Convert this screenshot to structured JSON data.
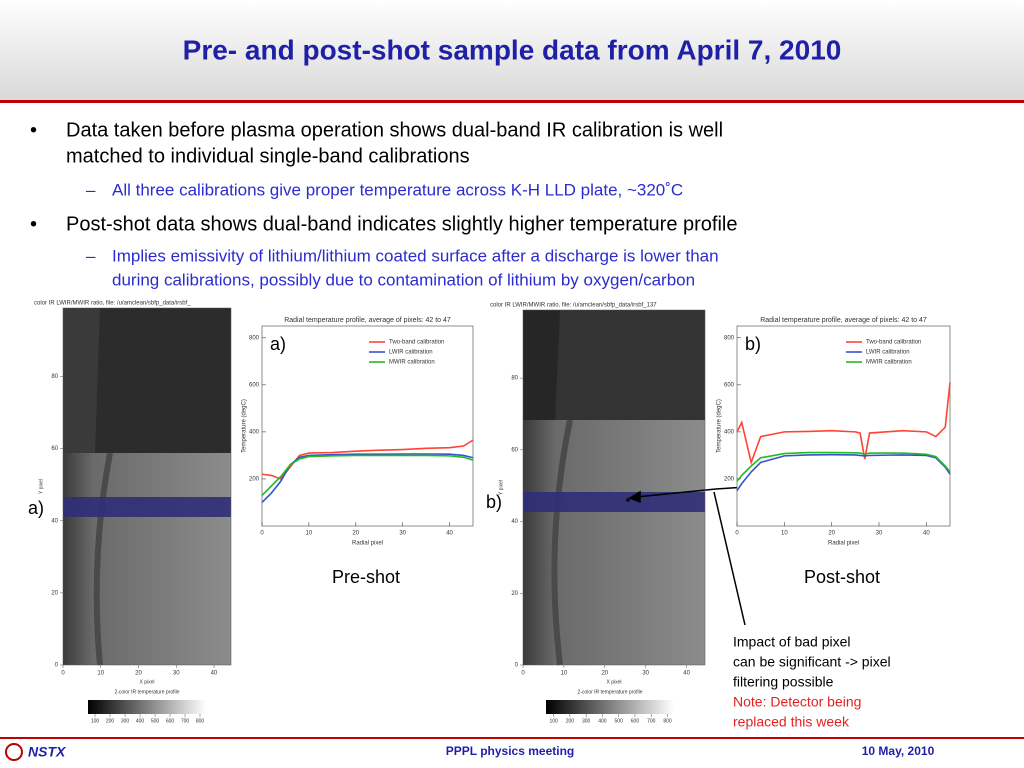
{
  "header": {
    "title": "Pre- and post-shot sample data from April 7, 2010"
  },
  "bullets": [
    {
      "lines": [
        "Data taken before plasma operation shows dual-band IR calibration is well",
        "matched to individual single-band calibrations"
      ],
      "sub": [
        "All three calibrations give proper temperature across K-H LLD plate, ~320˚C"
      ]
    },
    {
      "lines": [
        "Post-shot data shows dual-band indicates slightly higher temperature profile"
      ],
      "sub": [
        "Implies emissivity of lithium/lithium coated surface after a discharge is lower than",
        "during calibrations, possibly due to contamination of lithium by oxygen/carbon"
      ]
    }
  ],
  "images": [
    {
      "label": "a)",
      "title": "color IR LWIR/MWIR ratio, file: /u/amclean/sbfp_data/irsbf_",
      "ylabel": "Y pixel",
      "xlabel": "X pixel",
      "xlim": [
        0,
        44.5
      ],
      "ylim": [
        0,
        99
      ],
      "xticks": [
        0,
        10,
        20,
        30,
        40
      ],
      "yticks": [
        0,
        20,
        40,
        60,
        80
      ],
      "colorbar_title": "2-color IR temperature profile",
      "clim": [
        53,
        840
      ],
      "colorbar_ticks": [
        100,
        200,
        300,
        400,
        500,
        600,
        700,
        800
      ]
    },
    {
      "label": "b)",
      "title": "color IR LWIR/MWIR ratio, file: /u/amclean/sbfp_data/irsbf_137",
      "ylabel": "Y pixel",
      "xlabel": "X pixel",
      "xlim": [
        0,
        44.5
      ],
      "ylim": [
        0,
        99
      ],
      "xticks": [
        0,
        10,
        20,
        30,
        40
      ],
      "yticks": [
        0,
        20,
        40,
        60,
        80
      ],
      "colorbar_title": "2-color IR temperature profile",
      "clim": [
        53,
        840
      ],
      "colorbar_ticks": [
        100,
        200,
        300,
        400,
        500,
        600,
        700,
        800
      ]
    }
  ],
  "chart_data": [
    {
      "type": "line",
      "label": "a)",
      "title": "Radial temperature profile, average of pixels: 42 to 47",
      "xlabel": "Radial pixel",
      "ylabel": "Temperature (degC)",
      "x": [
        0,
        2,
        4,
        6,
        8,
        10,
        15,
        20,
        25,
        30,
        35,
        40,
        43,
        45
      ],
      "xlim": [
        0,
        45
      ],
      "ylim": [
        0,
        850
      ],
      "xticks": [
        0,
        10,
        20,
        30,
        40
      ],
      "yticks": [
        200,
        400,
        600,
        800
      ],
      "series": [
        {
          "name": "Two-band calibration",
          "color": "#ff4433",
          "values": [
            220,
            215,
            200,
            250,
            300,
            310,
            312,
            318,
            322,
            325,
            330,
            333,
            340,
            365
          ]
        },
        {
          "name": "LWIR calibration",
          "color": "#3355cc",
          "values": [
            100,
            140,
            190,
            260,
            292,
            300,
            303,
            305,
            305,
            306,
            306,
            305,
            300,
            290
          ]
        },
        {
          "name": "MWIR calibration",
          "color": "#22bb22",
          "values": [
            130,
            170,
            210,
            260,
            285,
            295,
            298,
            300,
            300,
            300,
            300,
            298,
            292,
            280
          ]
        }
      ]
    },
    {
      "type": "line",
      "label": "b)",
      "title": "Radial temperature profile, average of pixels: 42 to 47",
      "xlabel": "Radial pixel",
      "ylabel": "Temperature (degC)",
      "x": [
        0,
        1,
        3,
        5,
        10,
        15,
        20,
        25,
        26,
        27,
        28,
        35,
        40,
        42,
        44,
        45
      ],
      "xlim": [
        0,
        45
      ],
      "ylim": [
        0,
        850
      ],
      "xticks": [
        0,
        10,
        20,
        30,
        40
      ],
      "yticks": [
        200,
        400,
        600,
        800
      ],
      "series": [
        {
          "name": "Two-band calibration",
          "color": "#ff4433",
          "values": [
            400,
            440,
            270,
            380,
            400,
            402,
            405,
            400,
            395,
            285,
            395,
            405,
            400,
            380,
            420,
            610
          ]
        },
        {
          "name": "LWIR calibration",
          "color": "#3355cc",
          "values": [
            150,
            180,
            230,
            270,
            298,
            302,
            303,
            302,
            300,
            298,
            300,
            302,
            300,
            290,
            250,
            220
          ]
        },
        {
          "name": "MWIR calibration",
          "color": "#22bb22",
          "values": [
            190,
            215,
            255,
            290,
            308,
            312,
            312,
            311,
            310,
            305,
            310,
            310,
            305,
            295,
            255,
            230
          ]
        }
      ]
    }
  ],
  "captions": [
    "Pre-shot",
    "Post-shot"
  ],
  "annotation": {
    "lines": [
      "Impact of bad pixel",
      "can be significant -> pixel",
      "filtering possible"
    ],
    "note": [
      "Note: Detector being",
      "replaced this week"
    ]
  },
  "footer": {
    "logo": "NSTX",
    "center": "PPPL physics meeting",
    "right": "10 May, 2010"
  }
}
